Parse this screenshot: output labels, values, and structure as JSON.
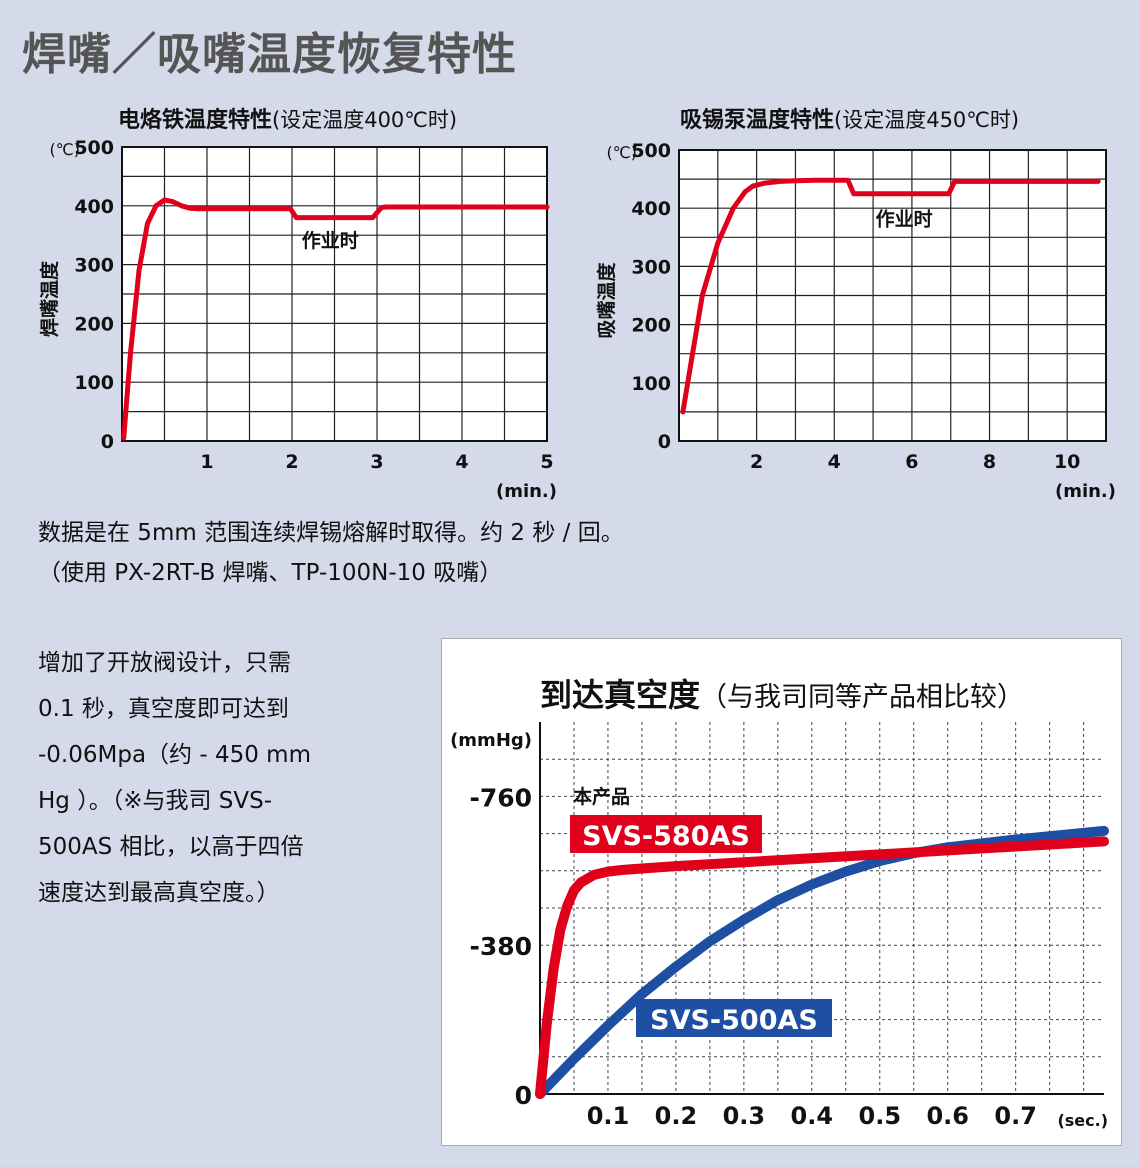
{
  "page_title": "焊嘴／吸嘴温度恢复特性",
  "chart_data": [
    {
      "type": "line",
      "title": "电烙铁温度特性",
      "subtitle": "(设定温度400℃时)",
      "ylabel": "焊嘴温度",
      "yunit": "(℃)",
      "xunit": "(min.)",
      "xlim": [
        0,
        5
      ],
      "ylim": [
        0,
        500
      ],
      "xticks": [
        1,
        2,
        3,
        4,
        5
      ],
      "yticks": [
        0,
        100,
        200,
        300,
        400,
        500
      ],
      "grid": true,
      "color": "#e0001b",
      "series": [
        {
          "x": [
            0.02,
            0.1,
            0.2,
            0.3,
            0.4,
            0.5,
            0.6,
            0.7,
            0.8,
            0.9,
            1.0,
            1.5,
            1.98,
            2.05,
            2.5,
            2.95,
            3.05,
            3.1,
            4.0,
            5.0
          ],
          "y": [
            5,
            150,
            290,
            370,
            400,
            410,
            407,
            400,
            396,
            395,
            395,
            395,
            395,
            380,
            380,
            380,
            397,
            398,
            398,
            398
          ]
        }
      ],
      "annotations": [
        {
          "text": "作业时",
          "x": 2.45,
          "y": 330
        }
      ]
    },
    {
      "type": "line",
      "title": "吸锡泵温度特性",
      "subtitle": "(设定温度450℃时)",
      "ylabel": "吸嘴温度",
      "yunit": "(℃)",
      "xunit": "(min.)",
      "xlim": [
        0,
        11
      ],
      "ylim": [
        0,
        500
      ],
      "xticks": [
        2,
        4,
        6,
        8,
        10
      ],
      "yticks": [
        0,
        100,
        200,
        300,
        400,
        500
      ],
      "grid": true,
      "color": "#e0001b",
      "series": [
        {
          "x": [
            0.1,
            0.3,
            0.6,
            1.0,
            1.4,
            1.7,
            1.9,
            2.2,
            2.6,
            3.0,
            3.5,
            4.0,
            4.35,
            4.5,
            5.5,
            6.5,
            6.95,
            7.1,
            8.5,
            10.8
          ],
          "y": [
            50,
            130,
            250,
            340,
            400,
            428,
            438,
            443,
            446,
            447,
            448,
            448,
            448,
            425,
            425,
            425,
            425,
            446,
            446,
            446
          ]
        }
      ],
      "annotations": [
        {
          "text": "作业时",
          "x": 5.8,
          "y": 370
        }
      ]
    },
    {
      "type": "line",
      "title": "到达真空度",
      "subtitle": "（与我司同等产品相比较）",
      "yunit": "(mmHg)",
      "xunit": "(sec.)",
      "xlim": [
        0,
        0.83
      ],
      "ylim": [
        0,
        950
      ],
      "xticks": [
        0.1,
        0.2,
        0.3,
        0.4,
        0.5,
        0.6,
        0.7
      ],
      "yticks": [
        0,
        -380,
        -760
      ],
      "ytick_values": [
        0,
        380,
        760
      ],
      "grid": true,
      "series": [
        {
          "name": "SVS-580AS",
          "color": "#e0001b",
          "x": [
            0,
            0.01,
            0.02,
            0.03,
            0.04,
            0.05,
            0.06,
            0.08,
            0.1,
            0.12,
            0.15,
            0.2,
            0.3,
            0.4,
            0.5,
            0.6,
            0.7,
            0.83
          ],
          "y": [
            0,
            180,
            320,
            420,
            480,
            520,
            540,
            560,
            568,
            572,
            576,
            582,
            592,
            602,
            612,
            622,
            632,
            645
          ]
        },
        {
          "name": "SVS-500AS",
          "color": "#1e4fa3",
          "x": [
            0,
            0.05,
            0.1,
            0.15,
            0.2,
            0.25,
            0.3,
            0.35,
            0.4,
            0.45,
            0.5,
            0.55,
            0.6,
            0.7,
            0.83
          ],
          "y": [
            0,
            90,
            175,
            255,
            325,
            390,
            445,
            495,
            535,
            568,
            595,
            615,
            630,
            650,
            672
          ]
        }
      ],
      "labels": {
        "product_note": "本产品",
        "series_a": "SVS-580AS",
        "series_b": "SVS-500AS"
      }
    }
  ],
  "note_lines": [
    "数据是在 5mm 范围连续焊锡熔解时取得。约 2 秒 / 回。",
    "（使用 PX-2RT-B 焊嘴、TP-100N-10 吸嘴）"
  ],
  "description_lines": [
    "增加了开放阀设计，只需",
    "0.1 秒，真空度即可达到",
    "-0.06Mpa（约 - 450 mm",
    "Hg ）。（※与我司 SVS-",
    "500AS 相比，以高于四倍",
    "速度达到最高真空度。）"
  ]
}
